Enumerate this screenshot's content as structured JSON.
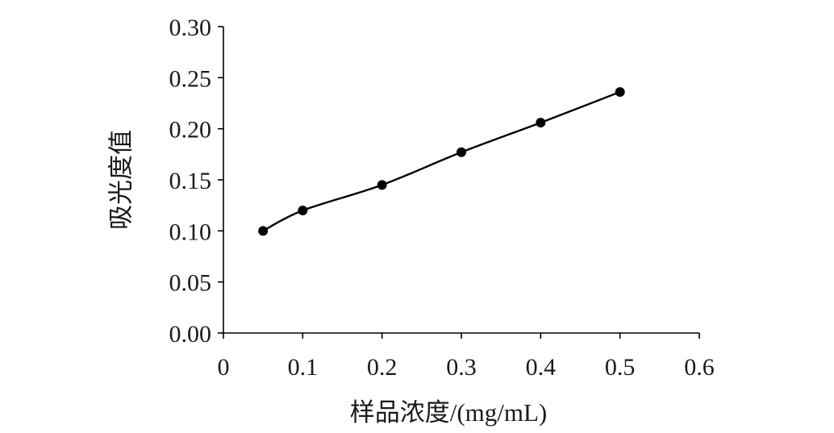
{
  "chart_data": {
    "type": "line",
    "title": "",
    "xlabel": "样品浓度/(mg/mL)",
    "ylabel": "吸光度值",
    "xlim": [
      0,
      0.6
    ],
    "ylim": [
      0,
      0.3
    ],
    "x_ticks": [
      "0",
      "0.1",
      "0.2",
      "0.3",
      "0.4",
      "0.5",
      "0.6"
    ],
    "y_ticks": [
      "0.00",
      "0.05",
      "0.10",
      "0.15",
      "0.20",
      "0.25",
      "0.30"
    ],
    "grid": false,
    "legend": "none",
    "series": [
      {
        "x": [
          0.05,
          0.1,
          0.2,
          0.3,
          0.4,
          0.5
        ],
        "y": [
          0.1,
          0.12,
          0.145,
          0.177,
          0.206,
          0.236
        ],
        "marker": "filled-circle",
        "line": "smooth",
        "color": "#000000"
      }
    ]
  }
}
